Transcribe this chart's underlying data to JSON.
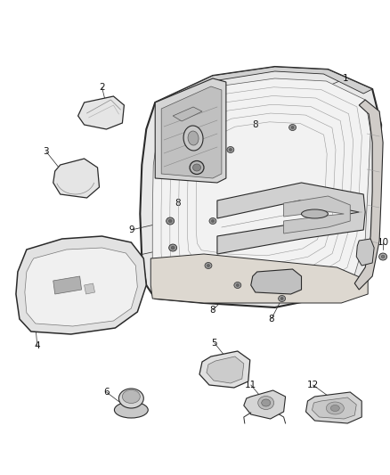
{
  "bg_color": "#ffffff",
  "fig_width": 4.38,
  "fig_height": 5.33,
  "dpi": 100,
  "line_color": "#2a2a2a",
  "light_fill": "#f0f0f0",
  "mid_fill": "#d8d8d8",
  "dark_fill": "#aaaaaa"
}
